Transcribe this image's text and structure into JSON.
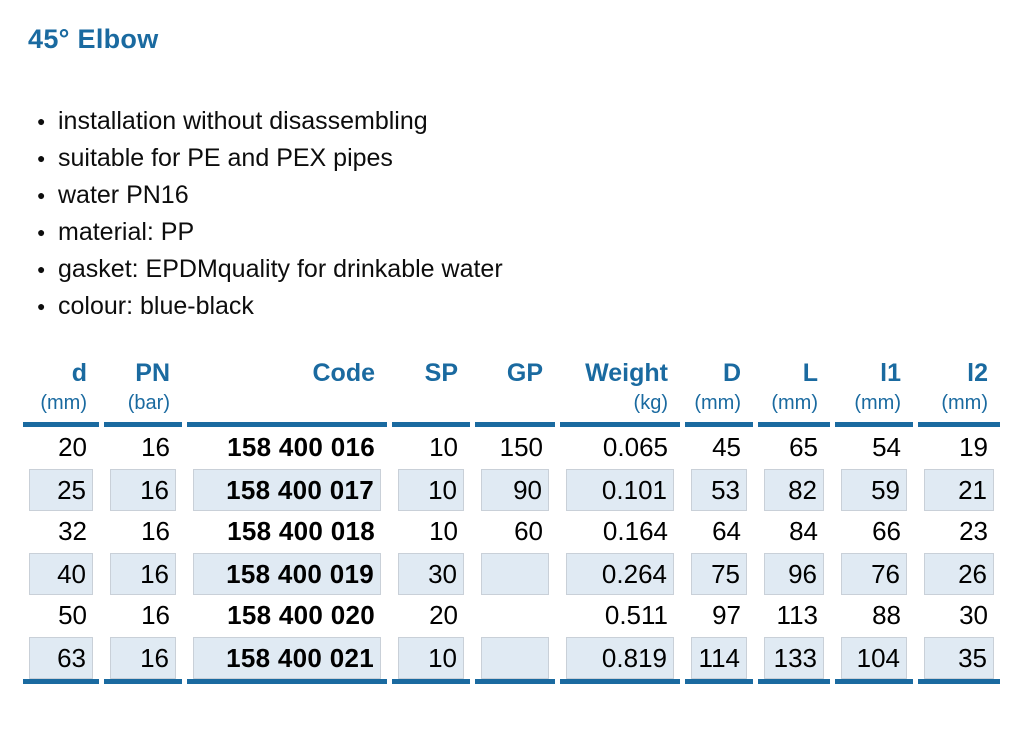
{
  "page": {
    "title": "45° Elbow"
  },
  "colors": {
    "accent_blue": "#1a6aa0",
    "row_shade": "#e0eaf3",
    "row_shade_border": "#c9d0d8",
    "text_black": "#0d0d0d"
  },
  "bullets": [
    "installation without disassembling",
    "suitable for PE and PEX pipes",
    "water PN16",
    "material: PP",
    "gasket: EPDMquality for drinkable water",
    "colour: blue-black"
  ],
  "table": {
    "columns": [
      {
        "label": "d",
        "unit": "(mm)"
      },
      {
        "label": "PN",
        "unit": "(bar)"
      },
      {
        "label": "Code",
        "unit": ""
      },
      {
        "label": "SP",
        "unit": ""
      },
      {
        "label": "GP",
        "unit": ""
      },
      {
        "label": "Weight",
        "unit": "(kg)"
      },
      {
        "label": "D",
        "unit": "(mm)"
      },
      {
        "label": "L",
        "unit": "(mm)"
      },
      {
        "label": "l1",
        "unit": "(mm)"
      },
      {
        "label": "l2",
        "unit": "(mm)"
      }
    ],
    "rows": [
      [
        "20",
        "16",
        "158 400 016",
        "10",
        "150",
        "0.065",
        "45",
        "65",
        "54",
        "19"
      ],
      [
        "25",
        "16",
        "158 400 017",
        "10",
        "90",
        "0.101",
        "53",
        "82",
        "59",
        "21"
      ],
      [
        "32",
        "16",
        "158 400 018",
        "10",
        "60",
        "0.164",
        "64",
        "84",
        "66",
        "23"
      ],
      [
        "40",
        "16",
        "158 400 019",
        "30",
        "",
        "0.264",
        "75",
        "96",
        "76",
        "26"
      ],
      [
        "50",
        "16",
        "158 400 020",
        "20",
        "",
        "0.511",
        "97",
        "113",
        "88",
        "30"
      ],
      [
        "63",
        "16",
        "158 400 021",
        "10",
        "",
        "0.819",
        "114",
        "133",
        "104",
        "35"
      ]
    ]
  }
}
